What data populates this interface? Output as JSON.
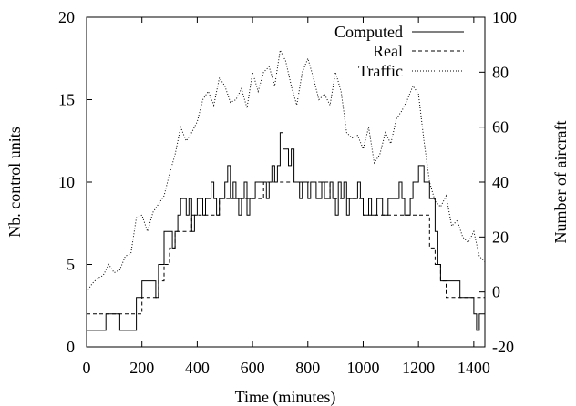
{
  "chart_data": {
    "type": "line",
    "xlabel": "Time (minutes)",
    "ylabel_left": "Nb. control units",
    "ylabel_right": "Number of aircraft",
    "xlim": [
      0,
      1440
    ],
    "ylim_left": [
      0,
      20
    ],
    "ylim_right": [
      -20,
      100
    ],
    "xticks": [
      "0",
      "200",
      "400",
      "600",
      "800",
      "1000",
      "1200",
      "1400"
    ],
    "yticks_left": [
      "0",
      "5",
      "10",
      "15",
      "20"
    ],
    "yticks_right": [
      "-20",
      "0",
      "20",
      "40",
      "60",
      "80",
      "100"
    ],
    "grid": false,
    "legend_position": "top-right",
    "series": [
      {
        "name": "Computed",
        "axis": "left",
        "style": "solid",
        "step": true,
        "x": [
          0,
          10,
          20,
          30,
          40,
          50,
          60,
          70,
          80,
          90,
          100,
          110,
          120,
          130,
          140,
          150,
          160,
          170,
          180,
          190,
          200,
          210,
          220,
          230,
          240,
          250,
          260,
          270,
          280,
          290,
          300,
          310,
          320,
          330,
          340,
          350,
          360,
          370,
          380,
          390,
          400,
          410,
          420,
          430,
          440,
          450,
          460,
          470,
          480,
          490,
          500,
          510,
          520,
          530,
          540,
          550,
          560,
          570,
          580,
          590,
          600,
          610,
          620,
          630,
          640,
          650,
          660,
          670,
          680,
          690,
          700,
          710,
          720,
          730,
          740,
          750,
          760,
          770,
          780,
          790,
          800,
          810,
          820,
          830,
          840,
          850,
          860,
          870,
          880,
          890,
          900,
          910,
          920,
          930,
          940,
          950,
          960,
          970,
          980,
          990,
          1000,
          1010,
          1020,
          1030,
          1040,
          1050,
          1060,
          1070,
          1080,
          1090,
          1100,
          1110,
          1120,
          1130,
          1140,
          1150,
          1160,
          1170,
          1180,
          1190,
          1200,
          1210,
          1220,
          1230,
          1240,
          1250,
          1260,
          1270,
          1280,
          1290,
          1300,
          1310,
          1320,
          1330,
          1340,
          1350,
          1360,
          1370,
          1380,
          1390,
          1400,
          1410,
          1420,
          1430,
          1440
        ],
        "y": [
          1,
          1,
          1,
          1,
          1,
          1,
          1,
          2,
          2,
          2,
          2,
          2,
          1,
          1,
          1,
          1,
          1,
          1,
          3,
          3,
          4,
          4,
          4,
          4,
          4,
          3,
          5,
          5,
          7,
          7,
          7,
          6,
          7,
          8,
          9,
          9,
          8,
          9,
          7,
          8,
          9,
          9,
          8,
          9,
          9,
          10,
          9,
          8,
          9,
          9,
          10,
          11,
          9,
          10,
          9,
          8,
          9,
          10,
          8,
          9,
          9,
          10,
          10,
          10,
          10,
          9,
          10,
          11,
          10,
          11,
          13,
          12,
          12,
          11,
          12,
          10,
          10,
          9,
          10,
          10,
          9,
          10,
          10,
          9,
          9,
          10,
          9,
          9,
          10,
          9,
          8,
          10,
          9,
          10,
          8,
          9,
          9,
          9,
          10,
          9,
          8,
          8,
          9,
          8,
          8,
          9,
          9,
          8,
          8,
          9,
          9,
          9,
          9,
          10,
          9,
          8,
          8,
          9,
          10,
          10,
          11,
          11,
          10,
          10,
          9,
          9,
          7,
          5,
          4,
          4,
          4,
          4,
          4,
          4,
          4,
          3,
          3,
          3,
          3,
          3,
          2,
          1,
          2,
          2,
          2
        ]
      },
      {
        "name": "Real",
        "axis": "left",
        "style": "dashed",
        "step": true,
        "x": [
          0,
          40,
          80,
          120,
          160,
          180,
          200,
          240,
          260,
          280,
          300,
          320,
          340,
          360,
          380,
          400,
          440,
          480,
          520,
          560,
          600,
          640,
          660,
          680,
          720,
          760,
          800,
          840,
          880,
          920,
          960,
          1000,
          1040,
          1080,
          1120,
          1160,
          1200,
          1240,
          1260,
          1280,
          1300,
          1340,
          1380,
          1440
        ],
        "y": [
          2,
          2,
          2,
          2,
          2,
          2,
          3,
          3,
          4,
          5,
          6,
          7,
          7,
          7,
          8,
          8,
          8,
          9,
          9,
          9,
          9,
          10,
          10,
          10,
          10,
          10,
          10,
          10,
          9,
          9,
          9,
          8,
          8,
          8,
          8,
          8,
          8,
          6,
          5,
          4,
          3,
          3,
          3,
          3
        ]
      },
      {
        "name": "Traffic",
        "axis": "right",
        "style": "dotted",
        "step": false,
        "x": [
          0,
          20,
          40,
          60,
          80,
          100,
          120,
          140,
          160,
          180,
          200,
          220,
          240,
          260,
          280,
          300,
          320,
          340,
          360,
          380,
          400,
          420,
          440,
          460,
          480,
          500,
          520,
          540,
          560,
          580,
          600,
          620,
          640,
          660,
          680,
          700,
          720,
          740,
          760,
          780,
          800,
          820,
          840,
          860,
          880,
          900,
          920,
          940,
          960,
          980,
          1000,
          1020,
          1040,
          1060,
          1080,
          1100,
          1120,
          1140,
          1160,
          1180,
          1200,
          1220,
          1240,
          1260,
          1280,
          1300,
          1320,
          1340,
          1360,
          1380,
          1400,
          1420,
          1440
        ],
        "y": [
          0,
          3,
          5,
          6,
          10,
          7,
          8,
          13,
          14,
          27,
          28,
          22,
          29,
          32,
          35,
          43,
          50,
          60,
          55,
          58,
          62,
          70,
          73,
          68,
          78,
          75,
          69,
          70,
          74,
          67,
          80,
          73,
          80,
          82,
          75,
          88,
          84,
          75,
          68,
          80,
          85,
          78,
          70,
          72,
          68,
          80,
          73,
          58,
          56,
          57,
          52,
          60,
          47,
          50,
          58,
          54,
          63,
          66,
          70,
          75,
          72,
          55,
          40,
          33,
          31,
          35,
          24,
          26,
          20,
          18,
          22,
          13,
          11
        ]
      }
    ]
  }
}
